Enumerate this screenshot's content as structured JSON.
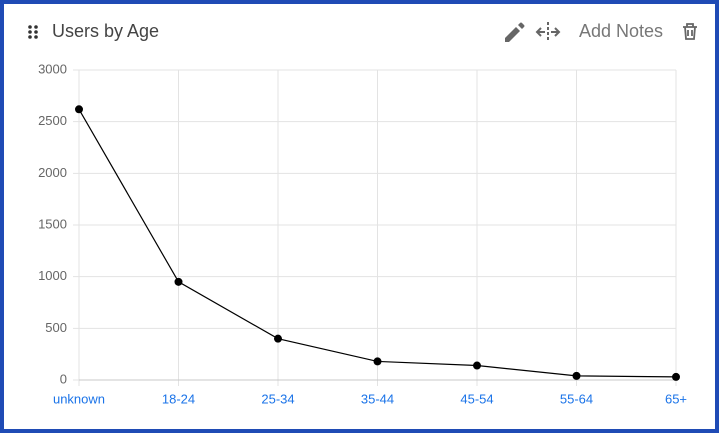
{
  "chart_data": {
    "type": "line",
    "title": "Users by Age",
    "categories": [
      "unknown",
      "18-24",
      "25-34",
      "35-44",
      "45-54",
      "55-64",
      "65+"
    ],
    "series": [
      {
        "name": "Users",
        "color": "#000000",
        "values": [
          2620,
          950,
          400,
          180,
          140,
          40,
          30
        ]
      }
    ],
    "ylim": [
      0,
      3000
    ],
    "yticks": [
      0,
      500,
      1000,
      1500,
      2000,
      2500,
      3000
    ],
    "grid": true
  },
  "toolbar": {
    "notes_button": "Add Notes"
  }
}
